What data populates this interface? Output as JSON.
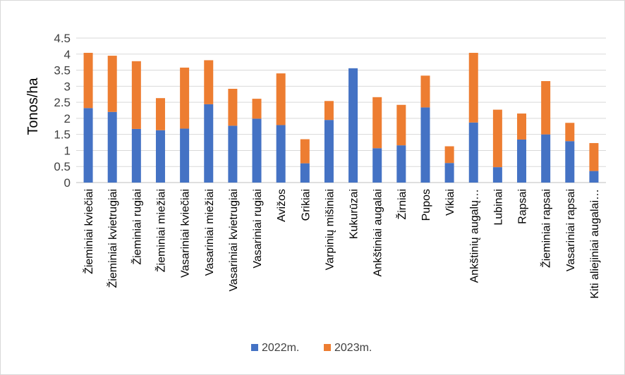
{
  "chart_data": {
    "type": "bar",
    "stacked": true,
    "title": "",
    "xlabel": "",
    "ylabel": "Tonos/ha",
    "ylim": [
      0,
      4.5
    ],
    "yticks": [
      "0",
      "0.5",
      "1",
      "1.5",
      "2",
      "2.5",
      "3",
      "3.5",
      "4",
      "4.5"
    ],
    "grid": true,
    "legend_position": "bottom",
    "categories": [
      "Žieminiai kviečiai",
      "Žieminiai kvietrugiai",
      "Žieminiai rugiai",
      "Žieminiai miežiai",
      "Vasariniai kviečiai",
      "Vasariniai miežiai",
      "Vasariniai kvietrugiai",
      "Vasariniai rugiai",
      "Avižos",
      "Grikiai",
      "Varpinių mišiniai",
      "Kukurūzai",
      "Ankštiniai augalai",
      "Žirniai",
      "Pupos",
      "Vikiai",
      "Ankštinių augalų…",
      "Lubinai",
      "Rapsai",
      "Žieminiai rapsai",
      "Vasariniai rapsai",
      "Kiti aliejiniai augalai…"
    ],
    "series": [
      {
        "name": "2022m.",
        "color": "#4472c4",
        "values": [
          2.32,
          2.2,
          1.67,
          1.63,
          1.68,
          2.44,
          1.77,
          1.99,
          1.79,
          0.6,
          1.95,
          3.56,
          1.07,
          1.16,
          2.34,
          0.61,
          1.87,
          0.48,
          1.34,
          1.5,
          1.29,
          0.36
        ]
      },
      {
        "name": "2023m.",
        "color": "#ed7d31",
        "values": [
          1.72,
          1.75,
          2.11,
          1.0,
          1.9,
          1.37,
          1.15,
          0.62,
          1.61,
          0.75,
          0.59,
          0.0,
          1.59,
          1.26,
          0.99,
          0.52,
          2.17,
          1.79,
          0.81,
          1.66,
          0.57,
          0.87
        ]
      }
    ]
  }
}
